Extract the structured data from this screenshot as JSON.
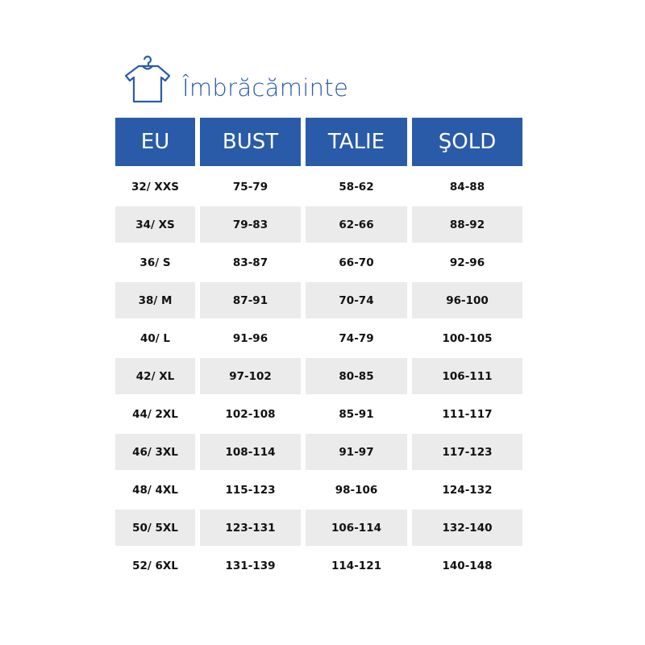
{
  "title": "Îmbrăcăminte",
  "icon": "tshirt-hanger-icon",
  "accent_color": "#2a5ba8",
  "headers": [
    "EU",
    "BUST",
    "TALIE",
    "ŞOLD"
  ],
  "rows": [
    [
      "32/ XXS",
      "75-79",
      "58-62",
      "84-88"
    ],
    [
      "34/ XS",
      "79-83",
      "62-66",
      "88-92"
    ],
    [
      "36/ S",
      "83-87",
      "66-70",
      "92-96"
    ],
    [
      "38/ M",
      "87-91",
      "70-74",
      "96-100"
    ],
    [
      "40/ L",
      "91-96",
      "74-79",
      "100-105"
    ],
    [
      "42/ XL",
      "97-102",
      "80-85",
      "106-111"
    ],
    [
      "44/ 2XL",
      "102-108",
      "85-91",
      "111-117"
    ],
    [
      "46/ 3XL",
      "108-114",
      "91-97",
      "117-123"
    ],
    [
      "48/ 4XL",
      "115-123",
      "98-106",
      "124-132"
    ],
    [
      "50/ 5XL",
      "123-131",
      "106-114",
      "132-140"
    ],
    [
      "52/ 6XL",
      "131-139",
      "114-121",
      "140-148"
    ]
  ]
}
